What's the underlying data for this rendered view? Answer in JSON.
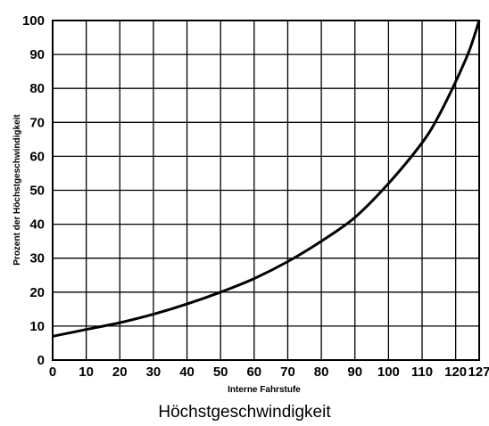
{
  "chart_data": {
    "type": "line",
    "title": "",
    "xlabel": "Interne Fahrstufe",
    "ylabel": "Prozent der Höchstgeschwindigkeit",
    "xlim": [
      0,
      127
    ],
    "ylim": [
      0,
      100
    ],
    "x_ticks": [
      0,
      10,
      20,
      30,
      40,
      50,
      60,
      70,
      80,
      90,
      100,
      110,
      120,
      127
    ],
    "y_ticks": [
      0,
      10,
      20,
      30,
      40,
      50,
      60,
      70,
      80,
      90,
      100
    ],
    "grid": true,
    "legend": "none",
    "line_color": "#000000",
    "series": [
      {
        "x": [
          0,
          10,
          20,
          30,
          40,
          50,
          60,
          70,
          80,
          90,
          100,
          110,
          115,
          120,
          124,
          127
        ],
        "values": [
          7,
          9,
          11,
          13.5,
          16.5,
          20,
          24,
          29,
          35,
          42,
          52,
          64,
          72,
          82,
          91,
          100
        ]
      }
    ]
  },
  "caption": "Höchstgeschwindigkeit"
}
